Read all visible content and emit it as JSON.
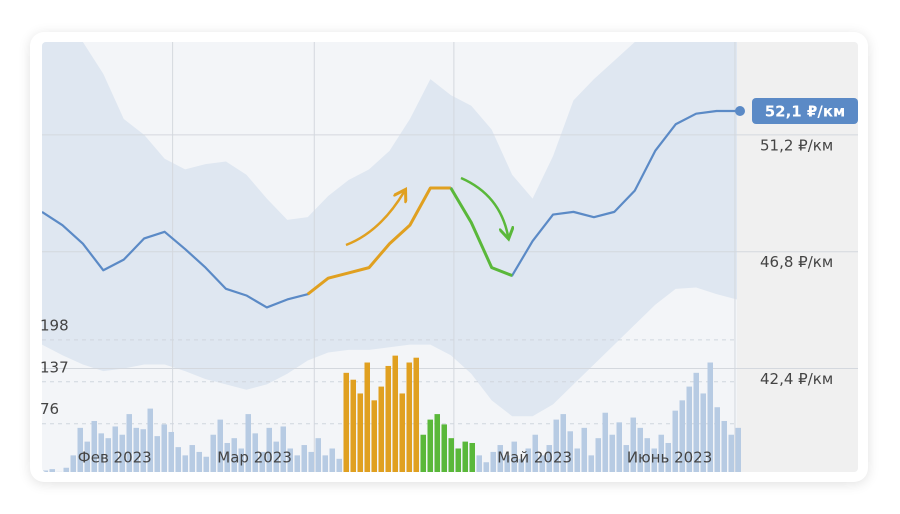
{
  "chart_data": {
    "type": "line",
    "ylim": [
      38.5,
      54.7
    ],
    "yticks": [
      {
        "value": 51.2,
        "label": "51,2 ₽/км"
      },
      {
        "value": 46.8,
        "label": "46,8 ₽/км"
      },
      {
        "value": 42.4,
        "label": "42,4 ₽/км"
      }
    ],
    "xlim": [
      0,
      34
    ],
    "xticks": [
      {
        "value": 3.56,
        "label": "Фев 2023"
      },
      {
        "value": 10.4,
        "label": "Мар 2023"
      },
      {
        "value": 24.1,
        "label": "Май 2023"
      },
      {
        "value": 30.7,
        "label": "Июнь 2023"
      }
    ],
    "xgrid": [
      6.39,
      13.32,
      20.15,
      33.9
    ],
    "series": [
      {
        "color": "#5b8ac6",
        "values": [
          48.3,
          47.8,
          47.1,
          46.1,
          46.5,
          47.3,
          47.55,
          46.9,
          46.2,
          45.4,
          45.15,
          44.7,
          45.0,
          45.2,
          45.8,
          46.0,
          46.2,
          47.1,
          47.8,
          49.2,
          49.2,
          47.9,
          46.2,
          45.9,
          47.2,
          48.2,
          48.3,
          48.1,
          48.3,
          49.1,
          50.6,
          51.6,
          52.0,
          52.1,
          52.1
        ],
        "value_labels": [
          null,
          null,
          null,
          null,
          null,
          null,
          null,
          null,
          null,
          null,
          null,
          null,
          null,
          null,
          null,
          null,
          null,
          null,
          null,
          null,
          null,
          null,
          null,
          null,
          null,
          null,
          null,
          null,
          null,
          null,
          null,
          null,
          null,
          null,
          "52,1 ₽/км"
        ]
      },
      {
        "color": "#e0a020",
        "values": [
          null,
          null,
          null,
          null,
          null,
          null,
          null,
          null,
          null,
          null,
          null,
          null,
          null,
          45.2,
          45.8,
          46.0,
          46.2,
          47.1,
          47.8,
          49.2,
          49.2,
          null,
          null,
          null,
          null,
          null,
          null,
          null,
          null,
          null,
          null,
          null,
          null,
          null,
          null
        ]
      },
      {
        "color": "#5ab83a",
        "values": [
          null,
          null,
          null,
          null,
          null,
          null,
          null,
          null,
          null,
          null,
          null,
          null,
          null,
          null,
          null,
          null,
          null,
          null,
          null,
          null,
          49.2,
          47.9,
          46.2,
          45.9,
          null,
          null,
          null,
          null,
          null,
          null,
          null,
          null,
          null,
          null,
          null
        ]
      }
    ],
    "band": {
      "color": "#dfe7f1",
      "upper": [
        54.7,
        54.7,
        54.7,
        53.5,
        51.8,
        51.2,
        50.3,
        49.9,
        50.1,
        50.2,
        49.7,
        48.8,
        48.0,
        48.1,
        48.9,
        49.5,
        49.9,
        50.6,
        51.8,
        53.3,
        52.7,
        52.3,
        51.4,
        49.7,
        48.8,
        50.4,
        52.5,
        53.3,
        54.0,
        54.7,
        54.7,
        54.7,
        54.7,
        54.7,
        54.7
      ],
      "lower": [
        43.3,
        42.9,
        42.55,
        42.3,
        42.4,
        42.55,
        42.55,
        42.3,
        42.0,
        41.8,
        41.6,
        41.8,
        42.2,
        42.7,
        43.0,
        43.1,
        43.1,
        43.2,
        43.3,
        43.3,
        42.9,
        42.2,
        41.2,
        40.6,
        40.6,
        41.05,
        41.8,
        42.55,
        43.3,
        44.05,
        44.8,
        45.4,
        45.45,
        45.2,
        45.0
      ]
    },
    "volume": {
      "y2lim": [
        0,
        631
      ],
      "y2ticks": [
        198,
        137,
        76
      ],
      "values": [
        8,
        10,
        6,
        12,
        30,
        70,
        50,
        80,
        62,
        55,
        72,
        60,
        90,
        70,
        68,
        98,
        58,
        75,
        64,
        42,
        30,
        45,
        35,
        28,
        60,
        82,
        48,
        55,
        40,
        90,
        62,
        35,
        70,
        50,
        72,
        40,
        30,
        45,
        35,
        55,
        30,
        40,
        25,
        150,
        140,
        120,
        165,
        110,
        130,
        160,
        175,
        120,
        165,
        172,
        60,
        82,
        90,
        75,
        55,
        40,
        50,
        48,
        30,
        20,
        35,
        45,
        30,
        50,
        25,
        40,
        60,
        30,
        45,
        82,
        90,
        65,
        40,
        70,
        30,
        55,
        92,
        60,
        78,
        45,
        85,
        70,
        55,
        40,
        60,
        48,
        95,
        110,
        130,
        150,
        120,
        165,
        100,
        80,
        60,
        70
      ],
      "colors": [
        "#b7cbe3",
        "#b7cbe3",
        "#b7cbe3",
        "#b7cbe3",
        "#b7cbe3",
        "#b7cbe3",
        "#b7cbe3",
        "#b7cbe3",
        "#b7cbe3",
        "#b7cbe3",
        "#b7cbe3",
        "#b7cbe3",
        "#b7cbe3",
        "#b7cbe3",
        "#b7cbe3",
        "#b7cbe3",
        "#b7cbe3",
        "#b7cbe3",
        "#b7cbe3",
        "#b7cbe3",
        "#b7cbe3",
        "#b7cbe3",
        "#b7cbe3",
        "#b7cbe3",
        "#b7cbe3",
        "#b7cbe3",
        "#b7cbe3",
        "#b7cbe3",
        "#b7cbe3",
        "#b7cbe3",
        "#b7cbe3",
        "#b7cbe3",
        "#b7cbe3",
        "#b7cbe3",
        "#b7cbe3",
        "#b7cbe3",
        "#b7cbe3",
        "#b7cbe3",
        "#b7cbe3",
        "#b7cbe3",
        "#b7cbe3",
        "#b7cbe3",
        "#b7cbe3",
        "#e0a020",
        "#e0a020",
        "#e0a020",
        "#e0a020",
        "#e0a020",
        "#e0a020",
        "#e0a020",
        "#e0a020",
        "#e0a020",
        "#e0a020",
        "#e0a020",
        "#5ab83a",
        "#5ab83a",
        "#5ab83a",
        "#5ab83a",
        "#5ab83a",
        "#5ab83a",
        "#5ab83a",
        "#5ab83a",
        "#b7cbe3",
        "#b7cbe3",
        "#b7cbe3",
        "#b7cbe3",
        "#b7cbe3",
        "#b7cbe3",
        "#b7cbe3",
        "#b7cbe3",
        "#b7cbe3",
        "#b7cbe3",
        "#b7cbe3",
        "#b7cbe3",
        "#b7cbe3",
        "#b7cbe3",
        "#b7cbe3",
        "#b7cbe3",
        "#b7cbe3",
        "#b7cbe3",
        "#b7cbe3",
        "#b7cbe3",
        "#b7cbe3",
        "#b7cbe3",
        "#b7cbe3",
        "#b7cbe3",
        "#b7cbe3",
        "#b7cbe3",
        "#b7cbe3",
        "#b7cbe3",
        "#b7cbe3",
        "#b7cbe3",
        "#b7cbe3",
        "#b7cbe3",
        "#b7cbe3",
        "#b7cbe3",
        "#b7cbe3",
        "#b7cbe3",
        "#b7cbe3",
        "#b7cbe3"
      ]
    }
  }
}
